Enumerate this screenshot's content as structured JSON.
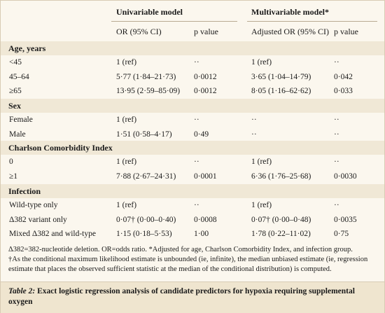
{
  "header": {
    "group1": "Univariable model",
    "group2": "Multivariable model*",
    "col1": "OR (95% CI)",
    "col2": "p value",
    "col3": "Adjusted OR (95% CI)",
    "col4": "p value"
  },
  "sections": [
    {
      "title": "Age, years",
      "rows": [
        {
          "label": "<45",
          "or": "1 (ref)",
          "p": "··",
          "aor": "1 (ref)",
          "ap": "··"
        },
        {
          "label": "45–64",
          "or": "5·77 (1·84–21·73)",
          "p": "0·0012",
          "aor": "3·65 (1·04–14·79)",
          "ap": "0·042"
        },
        {
          "label": "≥65",
          "or": "13·95 (2·59–85·09)",
          "p": "0·0012",
          "aor": "8·05 (1·16–62·62)",
          "ap": "0·033"
        }
      ]
    },
    {
      "title": "Sex",
      "rows": [
        {
          "label": "Female",
          "or": "1 (ref)",
          "p": "··",
          "aor": "··",
          "ap": "··"
        },
        {
          "label": "Male",
          "or": "1·51 (0·58–4·17)",
          "p": "0·49",
          "aor": "··",
          "ap": "··"
        }
      ]
    },
    {
      "title": "Charlson Comorbidity Index",
      "rows": [
        {
          "label": "0",
          "or": "1 (ref)",
          "p": "··",
          "aor": "1 (ref)",
          "ap": "··"
        },
        {
          "label": "≥1",
          "or": "7·88 (2·67–24·31)",
          "p": "0·0001",
          "aor": "6·36 (1·76–25·68)",
          "ap": "0·0030"
        }
      ]
    },
    {
      "title": "Infection",
      "rows": [
        {
          "label": "Wild-type only",
          "or": "1 (ref)",
          "p": "··",
          "aor": "1 (ref)",
          "ap": "··"
        },
        {
          "label": "Δ382 variant only",
          "or": "0·07† (0·00–0·40)",
          "p": "0·0008",
          "aor": "0·07† (0·00–0·48)",
          "ap": "0·0035"
        },
        {
          "label": "Mixed Δ382 and wild-type",
          "or": "1·15 (0·18–5·53)",
          "p": "1·00",
          "aor": "1·78 (0·22–11·02)",
          "ap": "0·75"
        }
      ]
    }
  ],
  "notes": {
    "line1": "Δ382=382-nucleotide deletion. OR=odds ratio. *Adjusted for age, Charlson Comorbidity Index, and infection group.",
    "line2": "†As the conditional maximum likelihood estimate is unbounded (ie, infinite), the median unbiased estimate (ie, regression estimate that places the observed sufficient statistic at the median of the conditional distribution) is computed."
  },
  "caption": {
    "label": "Table 2:",
    "text": "Exact logistic regression analysis of candidate predictors for hypoxia requiring supplemental oxygen"
  }
}
